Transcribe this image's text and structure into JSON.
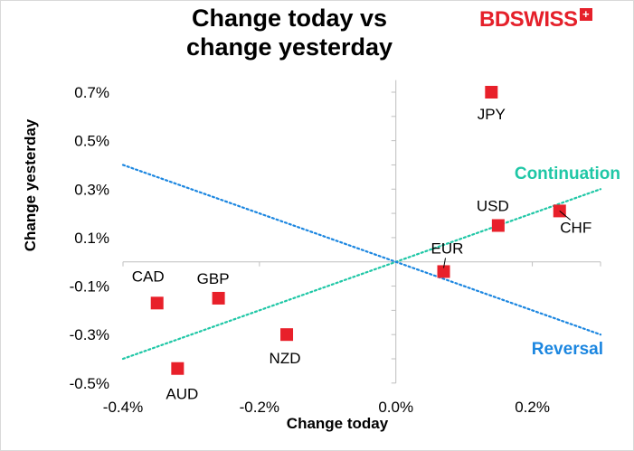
{
  "title_line1": "Change today vs",
  "title_line2": "change yesterday",
  "logo": {
    "text": "BDSWISS",
    "color": "#e5202a"
  },
  "chart_data": {
    "type": "scatter",
    "title": "Change today vs change yesterday",
    "xlabel": "Change today",
    "ylabel": "Change yesterday",
    "xlim": [
      -0.4,
      0.3
    ],
    "ylim": [
      -0.5,
      0.75
    ],
    "xticks": [
      -0.4,
      -0.2,
      0.0,
      0.2
    ],
    "xtick_labels": [
      "-0.4%",
      "-0.2%",
      "0.0%",
      "0.2%"
    ],
    "yticks": [
      0.7,
      0.5,
      0.3,
      0.1,
      -0.1,
      -0.3,
      -0.5
    ],
    "ytick_labels": [
      "0.7%",
      "0.5%",
      "0.3%",
      "0.1%",
      "-0.1%",
      "-0.3%",
      "-0.5%"
    ],
    "points": [
      {
        "label": "JPY",
        "x": 0.14,
        "y": 0.7
      },
      {
        "label": "USD",
        "x": 0.15,
        "y": 0.15
      },
      {
        "label": "CHF",
        "x": 0.24,
        "y": 0.21
      },
      {
        "label": "EUR",
        "x": 0.07,
        "y": -0.04
      },
      {
        "label": "CAD",
        "x": -0.35,
        "y": -0.17
      },
      {
        "label": "GBP",
        "x": -0.26,
        "y": -0.15
      },
      {
        "label": "NZD",
        "x": -0.16,
        "y": -0.3
      },
      {
        "label": "AUD",
        "x": -0.32,
        "y": -0.44
      }
    ],
    "lines": [
      {
        "name": "Continuation",
        "from": [
          -0.4,
          -0.4
        ],
        "to": [
          0.3,
          0.3
        ],
        "color": "#1fc7a6"
      },
      {
        "name": "Reversal",
        "from": [
          -0.4,
          0.4
        ],
        "to": [
          0.3,
          -0.3
        ],
        "color": "#1b86e0"
      }
    ],
    "marker_color": "#e8202a"
  }
}
